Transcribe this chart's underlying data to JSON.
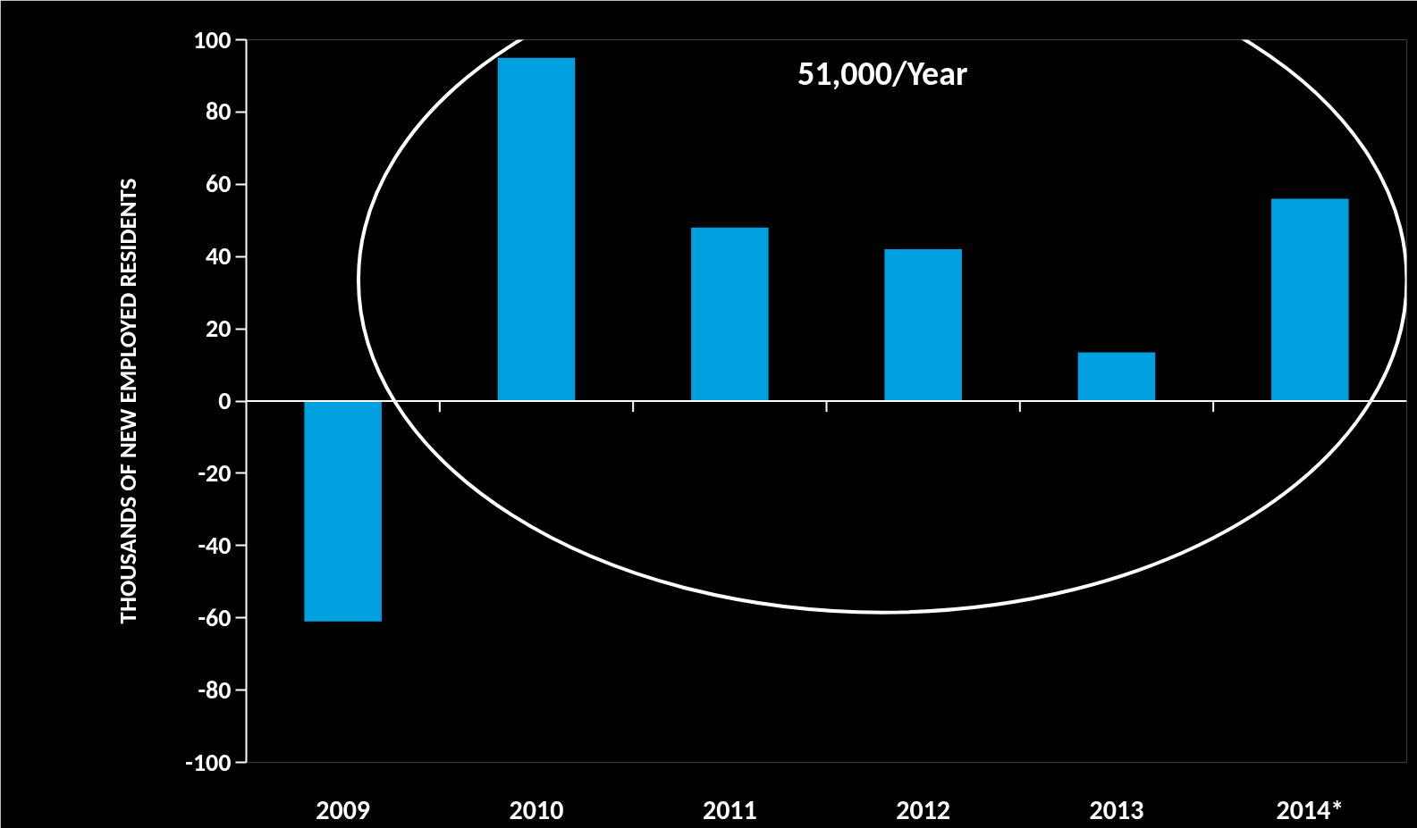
{
  "chart_data": {
    "type": "bar",
    "ylabel": "THOUSANDS OF NEW EMPLOYED RESIDENTS",
    "categories": [
      "2009",
      "2010",
      "2011",
      "2012",
      "2013",
      "2014*"
    ],
    "values": [
      -61,
      95,
      48,
      42,
      13.5,
      56
    ],
    "color": "#009fdf",
    "ylim": [
      -100,
      100
    ],
    "yticks": [
      -100,
      -80,
      -60,
      -40,
      -20,
      0,
      20,
      40,
      60,
      80,
      100
    ],
    "annotations": [
      "51,000/Year"
    ]
  }
}
